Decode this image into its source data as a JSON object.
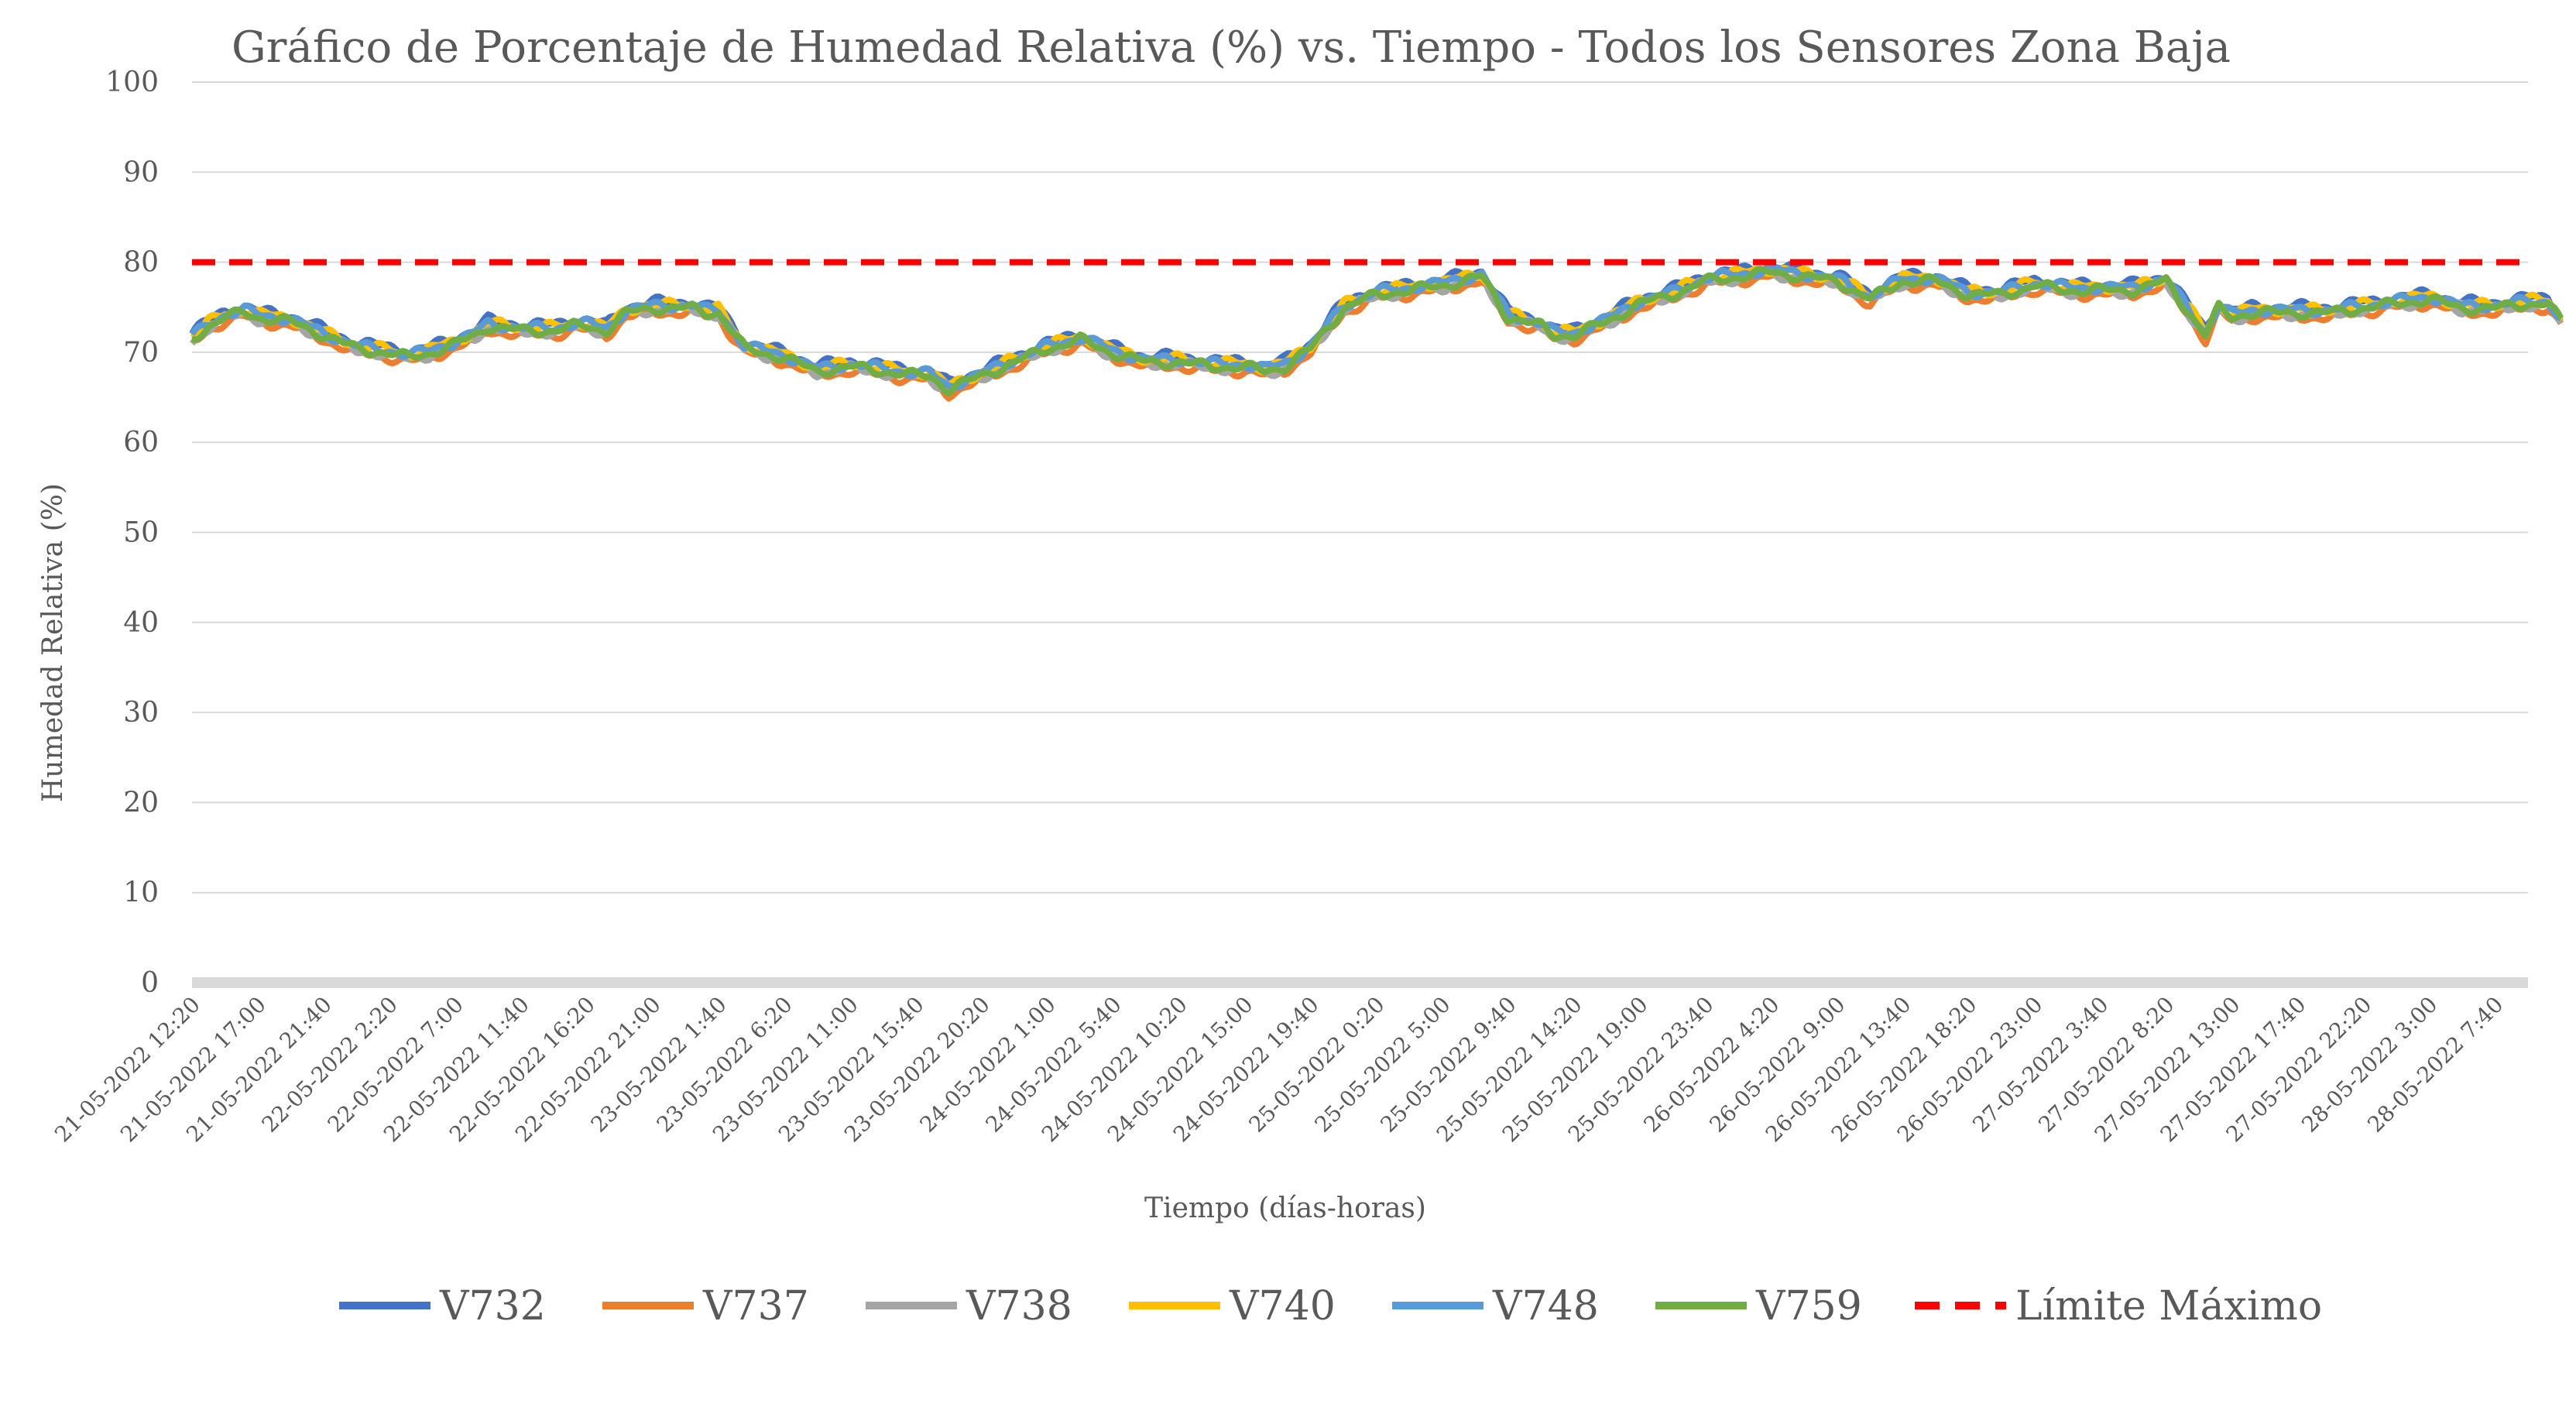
{
  "chart_data": {
    "type": "line",
    "title": "Gráfico de Porcentaje de Humedad Relativa (%) vs. Tiempo - Todos los Sensores Zona Baja",
    "xlabel": "Tiempo (días-horas)",
    "ylabel": "Humedad Relativa (%)",
    "ylim": [
      0,
      100
    ],
    "yticks": [
      0,
      10,
      20,
      30,
      40,
      50,
      60,
      70,
      80,
      90,
      100
    ],
    "grid": true,
    "legend_position": "bottom",
    "categories": [
      "21-05-2022 12:20",
      "21-05-2022 17:00",
      "21-05-2022 21:40",
      "22-05-2022 2:20",
      "22-05-2022 7:00",
      "22-05-2022 11:40",
      "22-05-2022 16:20",
      "22-05-2022 21:00",
      "23-05-2022 1:40",
      "23-05-2022 6:20",
      "23-05-2022 11:00",
      "23-05-2022 15:40",
      "23-05-2022 20:20",
      "24-05-2022 1:00",
      "24-05-2022 5:40",
      "24-05-2022 10:20",
      "24-05-2022 15:00",
      "24-05-2022 19:40",
      "25-05-2022 0:20",
      "25-05-2022 5:00",
      "25-05-2022 9:40",
      "25-05-2022 14:20",
      "25-05-2022 19:00",
      "25-05-2022 23:40",
      "26-05-2022 4:20",
      "26-05-2022 9:00",
      "26-05-2022 13:40",
      "26-05-2022 18:20",
      "26-05-2022 23:00",
      "27-05-2022 3:40",
      "27-05-2022 8:20",
      "27-05-2022 13:00",
      "27-05-2022 17:40",
      "27-05-2022 22:20",
      "28-05-2022 3:00",
      "28-05-2022 7:40"
    ],
    "base_profile": {
      "x": [
        0,
        0.25,
        0.5,
        0.8,
        1,
        1.5,
        2,
        2.5,
        3,
        3.3,
        3.6,
        4,
        4.3,
        4.5,
        5,
        5.5,
        5.8,
        6,
        6.3,
        6.6,
        7,
        7.4,
        7.6,
        7.8,
        8,
        8.4,
        8.7,
        9,
        9.5,
        10,
        10.5,
        11,
        11.2,
        11.5,
        12,
        12.5,
        13,
        13.5,
        14,
        14.5,
        15,
        15.5,
        16,
        16.3,
        16.6,
        17,
        17.5,
        18,
        18.5,
        19,
        19.3,
        19.6,
        20,
        20.5,
        20.7,
        21,
        21.5,
        22,
        22.5,
        23,
        23.5,
        24,
        24.5,
        25,
        25.5,
        26,
        26.5,
        27,
        27.5,
        28,
        28.5,
        29,
        29.5,
        30,
        30.3,
        30.6,
        30.8,
        31,
        31.3,
        31.6,
        32,
        32.5,
        33,
        33.5,
        34,
        34.5,
        35,
        35.5,
        35.8,
        36
      ],
      "y": [
        71.5,
        73,
        74,
        74.5,
        74,
        73.5,
        72,
        70.5,
        70,
        69.5,
        70,
        71,
        72,
        73,
        72.5,
        72.5,
        73,
        73,
        72.5,
        74.5,
        75,
        75,
        75,
        74.5,
        74.5,
        70.5,
        70,
        69.5,
        68,
        68.5,
        68,
        67.5,
        67.5,
        66,
        67.5,
        69,
        70.5,
        71.5,
        70,
        69,
        69,
        68.5,
        68.5,
        68,
        68.5,
        70.5,
        75,
        76.5,
        77,
        77.5,
        78,
        78.5,
        74,
        73,
        72,
        72,
        73.5,
        75.5,
        76.5,
        78,
        78.5,
        79,
        78.5,
        78,
        76,
        78,
        78,
        76.5,
        76.5,
        77.5,
        77,
        77,
        77,
        78,
        75,
        72,
        75,
        74,
        74.5,
        74.5,
        74.5,
        74.5,
        75,
        75.5,
        76,
        75,
        75,
        75.5,
        75.5,
        73.5
      ]
    },
    "series": [
      {
        "name": "V732",
        "color": "#4472C4",
        "offset": 0.6
      },
      {
        "name": "V737",
        "color": "#ED7D31",
        "offset": -0.6
      },
      {
        "name": "V738",
        "color": "#A5A5A5",
        "offset": -0.3
      },
      {
        "name": "V740",
        "color": "#FFC000",
        "offset": 0.3
      },
      {
        "name": "V748",
        "color": "#5B9BD5",
        "offset": 0.2
      },
      {
        "name": "V759",
        "color": "#70AD47",
        "offset": -0.1
      },
      {
        "name": "Límite Máximo",
        "color": "#FF0000",
        "dashed": true,
        "constant": 80
      }
    ]
  }
}
